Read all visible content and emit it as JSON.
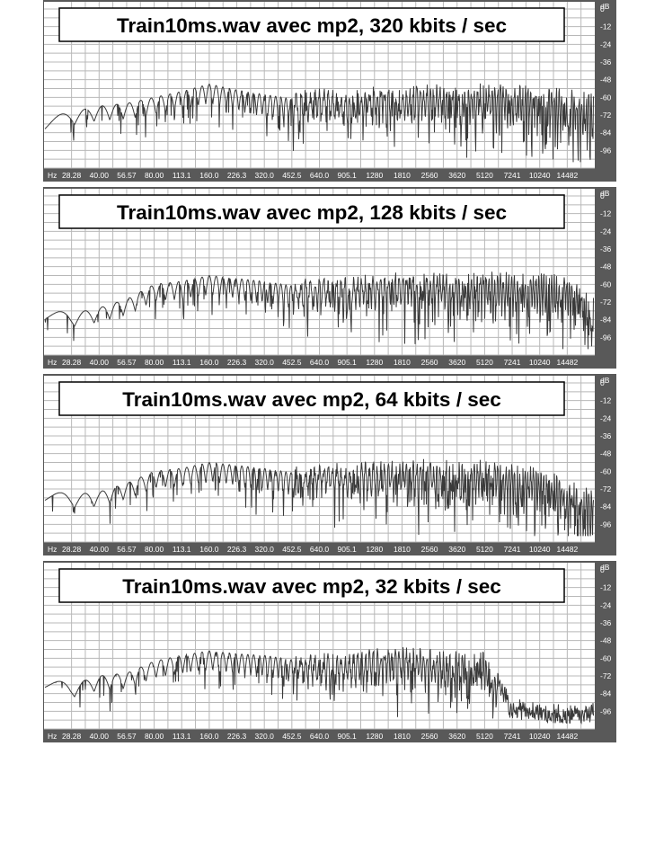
{
  "colors": {
    "plot_background": "#ffffff",
    "grid": "#b8b8b8",
    "axis_strip": "#595959",
    "axis_text": "#ffffff",
    "spectrum": "#3a3a3a",
    "title_border": "#000000"
  },
  "x_axis_unit": "Hz",
  "x_ticks": [
    "28.28",
    "40.00",
    "56.57",
    "80.00",
    "113.1",
    "160.0",
    "226.3",
    "320.0",
    "452.5",
    "640.0",
    "905.1",
    "1280",
    "1810",
    "2560",
    "3620",
    "5120",
    "7241",
    "10240",
    "14482"
  ],
  "y_axis_unit": "dB",
  "y_ticks": [
    "0",
    "-12",
    "-24",
    "-36",
    "-48",
    "-60",
    "-72",
    "-84",
    "-96"
  ],
  "chart_data": [
    {
      "type": "line",
      "title": "Train10ms.wav avec mp2, 320 kbits / sec",
      "xlabel": "Hz",
      "ylabel": "dB",
      "xlim": [
        20,
        20480
      ],
      "x_scale": "log",
      "ylim": [
        -108,
        0
      ],
      "grid": true,
      "series": [
        {
          "x": [
            20,
            28,
            40,
            57,
            80,
            113,
            160,
            226,
            320,
            453,
            640,
            905,
            1280,
            1810,
            2560,
            3620,
            5120,
            7241,
            10240,
            14482,
            20480
          ],
          "y": [
            -74,
            -70,
            -66,
            -64,
            -60,
            -56,
            -51,
            -55,
            -58,
            -61,
            -57,
            -60,
            -55,
            -57,
            -54,
            -56,
            -54,
            -55,
            -56,
            -59,
            -62
          ]
        }
      ],
      "cutoff_hz": null
    },
    {
      "type": "line",
      "title": "Train10ms.wav avec mp2, 128 kbits / sec",
      "xlabel": "Hz",
      "ylabel": "dB",
      "xlim": [
        20,
        20480
      ],
      "x_scale": "log",
      "ylim": [
        -108,
        0
      ],
      "grid": true,
      "series": [
        {
          "x": [
            20,
            28,
            40,
            57,
            80,
            113,
            160,
            226,
            320,
            453,
            640,
            905,
            1280,
            1810,
            2560,
            3620,
            5120,
            7241,
            10240,
            14482,
            20480
          ],
          "y": [
            -76,
            -80,
            -76,
            -70,
            -60,
            -58,
            -54,
            -56,
            -58,
            -61,
            -58,
            -60,
            -56,
            -56,
            -55,
            -57,
            -55,
            -56,
            -57,
            -58,
            -70
          ]
        }
      ],
      "cutoff_hz": null
    },
    {
      "type": "line",
      "title": "Train10ms.wav avec mp2, 64 kbits / sec",
      "xlabel": "Hz",
      "ylabel": "dB",
      "xlim": [
        20,
        20480
      ],
      "x_scale": "log",
      "ylim": [
        -108,
        0
      ],
      "grid": true,
      "series": [
        {
          "x": [
            20,
            28,
            40,
            57,
            80,
            113,
            160,
            226,
            320,
            453,
            640,
            905,
            1280,
            1810,
            2560,
            3620,
            5120,
            7241,
            10240,
            14482,
            20480
          ],
          "y": [
            -72,
            -76,
            -74,
            -68,
            -60,
            -58,
            -54,
            -56,
            -58,
            -61,
            -58,
            -60,
            -57,
            -57,
            -56,
            -58,
            -57,
            -59,
            -62,
            -68,
            -78
          ]
        }
      ],
      "cutoff_hz": null
    },
    {
      "type": "line",
      "title": "Train10ms.wav avec mp2, 32 kbits / sec",
      "xlabel": "Hz",
      "ylabel": "dB",
      "xlim": [
        20,
        20480
      ],
      "x_scale": "log",
      "ylim": [
        -108,
        0
      ],
      "grid": true,
      "series": [
        {
          "x": [
            20,
            28,
            40,
            57,
            80,
            113,
            160,
            226,
            320,
            453,
            640,
            905,
            1280,
            1810,
            2560,
            3620,
            5120,
            7241,
            10240,
            14482,
            20480
          ],
          "y": [
            -72,
            -78,
            -72,
            -70,
            -62,
            -58,
            -55,
            -57,
            -58,
            -61,
            -60,
            -62,
            -57,
            -57,
            -58,
            -60,
            -58,
            -92,
            -94,
            -97,
            -92
          ]
        }
      ],
      "cutoff_hz": 6000
    }
  ]
}
